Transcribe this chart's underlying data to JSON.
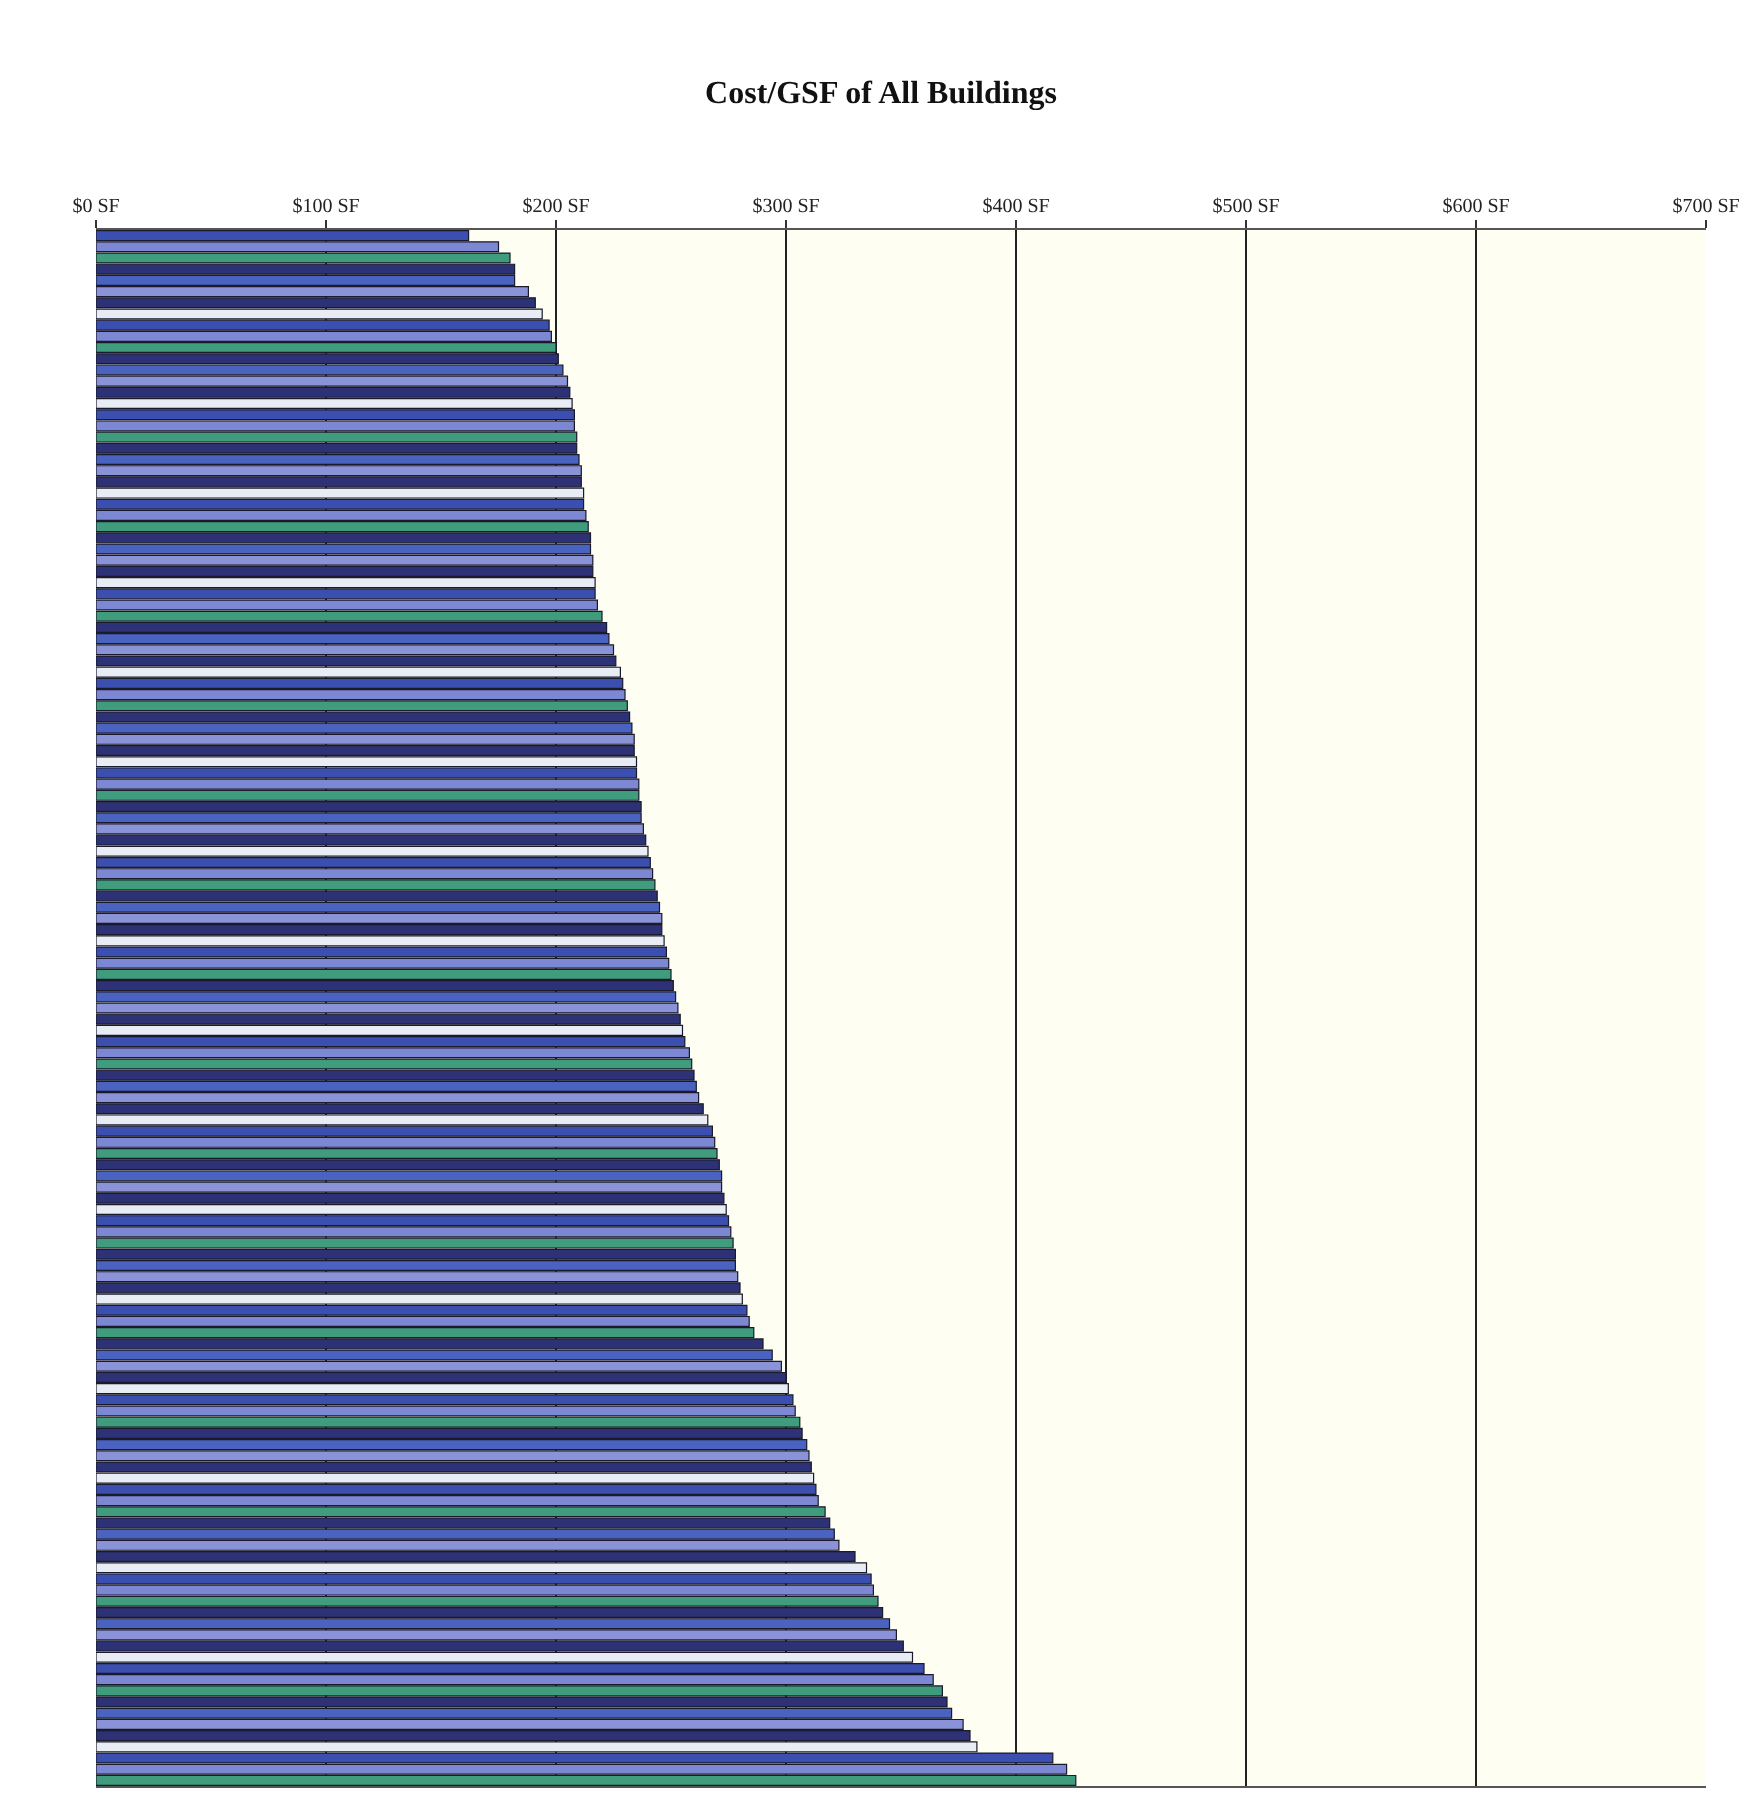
{
  "chart_data": {
    "type": "bar",
    "title": "Cost/GSF of All Buildings",
    "orientation": "horizontal",
    "tick_labels": "x",
    "grid": "x",
    "categories": [
      null,
      null,
      null,
      null,
      null,
      null,
      null,
      null,
      null,
      null,
      null,
      null,
      null,
      null,
      null,
      null,
      null,
      null,
      null,
      null,
      null,
      null,
      null,
      null,
      null,
      null,
      null,
      null,
      null,
      null,
      null,
      null,
      null,
      null,
      null,
      null,
      null,
      null,
      null,
      null,
      null,
      null,
      null,
      null,
      null,
      null,
      null,
      null,
      null,
      null,
      null,
      null,
      null,
      null,
      null,
      null,
      null,
      null,
      null,
      null,
      null,
      null,
      null,
      null,
      null,
      null,
      null,
      null,
      null,
      null,
      null,
      null,
      null,
      null,
      null,
      null,
      null,
      null,
      null,
      null,
      null,
      null,
      null,
      null,
      null,
      null,
      null,
      null,
      null,
      null,
      null,
      null,
      null,
      null,
      null,
      null,
      null,
      null,
      null,
      null,
      null,
      null,
      null,
      null,
      null,
      null,
      null,
      null,
      null,
      null,
      null,
      null,
      null,
      null,
      null,
      null,
      null,
      null,
      null,
      null,
      null,
      null,
      null,
      null,
      null,
      null,
      null,
      null,
      null,
      null,
      null,
      null,
      null,
      null,
      null,
      null,
      null,
      null,
      null
    ],
    "values": [
      162,
      175,
      180,
      182,
      182,
      188,
      191,
      194,
      197,
      198,
      200,
      201,
      203,
      205,
      206,
      207,
      208,
      208,
      209,
      209,
      210,
      211,
      211,
      212,
      212,
      213,
      214,
      215,
      215,
      216,
      216,
      217,
      217,
      218,
      220,
      222,
      223,
      225,
      226,
      228,
      229,
      230,
      231,
      232,
      233,
      234,
      234,
      235,
      235,
      236,
      236,
      237,
      237,
      238,
      239,
      240,
      241,
      242,
      243,
      244,
      245,
      246,
      246,
      247,
      248,
      249,
      250,
      251,
      252,
      253,
      254,
      255,
      256,
      258,
      259,
      260,
      261,
      262,
      264,
      266,
      268,
      269,
      270,
      271,
      272,
      272,
      273,
      274,
      275,
      276,
      277,
      278,
      278,
      279,
      280,
      281,
      283,
      284,
      286,
      290,
      294,
      298,
      300,
      301,
      303,
      304,
      306,
      307,
      309,
      310,
      311,
      312,
      313,
      314,
      317,
      319,
      321,
      323,
      330,
      335,
      337,
      338,
      340,
      342,
      345,
      348,
      351,
      355,
      360,
      364,
      368,
      370,
      372,
      377,
      380,
      383,
      416,
      422,
      426
    ],
    "colors": [
      "#3b4fb0",
      "#7d88d4",
      "#3f9c7c",
      "#2c3275",
      "#4a62c0",
      "#8a93d8",
      "#2c3275",
      "#e8ecf4",
      "#3b4fb0",
      "#7d88d4",
      "#3f9c7c",
      "#2c3275",
      "#4a62c0",
      "#8a93d8",
      "#2c3275",
      "#e8ecf4",
      "#3b4fb0",
      "#7d88d4",
      "#3f9c7c",
      "#2c3275",
      "#4a62c0",
      "#8a93d8",
      "#2c3275",
      "#e8ecf4",
      "#3b4fb0",
      "#7d88d4",
      "#3f9c7c",
      "#2c3275",
      "#4a62c0",
      "#8a93d8",
      "#2c3275",
      "#e8ecf4",
      "#3b4fb0",
      "#7d88d4",
      "#3f9c7c",
      "#2c3275",
      "#4a62c0",
      "#8a93d8",
      "#2c3275",
      "#e8ecf4",
      "#3b4fb0",
      "#7d88d4",
      "#3f9c7c",
      "#2c3275",
      "#4a62c0",
      "#8a93d8",
      "#2c3275",
      "#e8ecf4",
      "#3b4fb0",
      "#7d88d4",
      "#3f9c7c",
      "#2c3275",
      "#4a62c0",
      "#8a93d8",
      "#2c3275",
      "#e8ecf4",
      "#3b4fb0",
      "#7d88d4",
      "#3f9c7c",
      "#2c3275",
      "#4a62c0",
      "#8a93d8",
      "#2c3275",
      "#e8ecf4",
      "#3b4fb0",
      "#7d88d4",
      "#3f9c7c",
      "#2c3275",
      "#4a62c0",
      "#8a93d8",
      "#2c3275",
      "#e8ecf4",
      "#3b4fb0",
      "#7d88d4",
      "#3f9c7c",
      "#2c3275",
      "#4a62c0",
      "#8a93d8",
      "#2c3275",
      "#e8ecf4",
      "#3b4fb0",
      "#7d88d4",
      "#3f9c7c",
      "#2c3275",
      "#4a62c0",
      "#8a93d8",
      "#2c3275",
      "#e8ecf4",
      "#3b4fb0",
      "#7d88d4",
      "#3f9c7c",
      "#2c3275",
      "#4a62c0",
      "#8a93d8",
      "#2c3275",
      "#e8ecf4",
      "#3b4fb0",
      "#7d88d4",
      "#3f9c7c",
      "#2c3275",
      "#4a62c0",
      "#8a93d8",
      "#2c3275",
      "#e8ecf4",
      "#3b4fb0",
      "#7d88d4",
      "#3f9c7c",
      "#2c3275",
      "#4a62c0",
      "#8a93d8",
      "#2c3275",
      "#e8ecf4",
      "#3b4fb0",
      "#7d88d4",
      "#3f9c7c",
      "#2c3275",
      "#4a62c0",
      "#8a93d8",
      "#2c3275",
      "#e8ecf4",
      "#3b4fb0",
      "#7d88d4",
      "#3f9c7c",
      "#2c3275",
      "#4a62c0",
      "#8a93d8",
      "#2c3275",
      "#e8ecf4",
      "#3b4fb0",
      "#7d88d4",
      "#3f9c7c",
      "#2c3275",
      "#4a62c0",
      "#8a93d8",
      "#2c3275",
      "#e8ecf4",
      "#3b4fb0",
      "#7d88d4",
      "#3f9c7c"
    ],
    "xlim": [
      0,
      700
    ],
    "xticks": [
      {
        "value": 0,
        "label": "$0 SF"
      },
      {
        "value": 100,
        "label": "$100 SF"
      },
      {
        "value": 200,
        "label": "$200 SF"
      },
      {
        "value": 300,
        "label": "$300 SF"
      },
      {
        "value": 400,
        "label": "$400 SF"
      },
      {
        "value": 500,
        "label": "$500 SF"
      },
      {
        "value": 600,
        "label": "$600 SF"
      },
      {
        "value": 700,
        "label": "$700 SF"
      }
    ]
  }
}
